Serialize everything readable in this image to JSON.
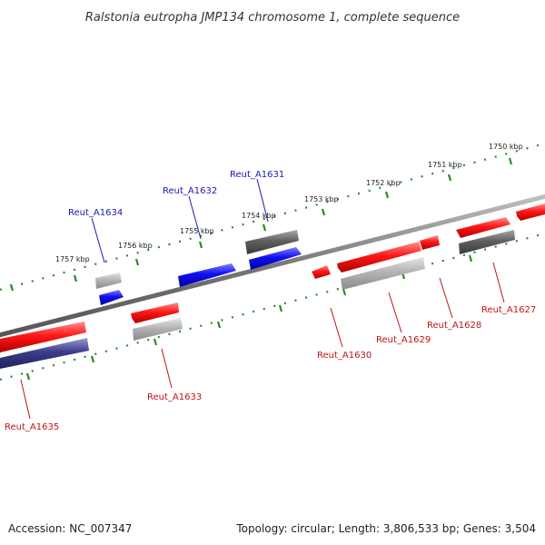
{
  "title": "Ralstonia eutropha JMP134 chromosome 1, complete sequence",
  "accession": "Accession: NC_007347",
  "summary": "Topology: circular; Length: 3,806,533 bp; Genes: 3,504",
  "colors": {
    "forward_gene": "#0a0aee",
    "reverse_gene": "#ee0a0a",
    "forward_label": "#1a1ab0",
    "reverse_label": "#c01414",
    "cds_gray": "#666666",
    "cds_light": "#b8b8b8",
    "cds_purple": "#3a3a8a",
    "backbone": "#777777",
    "tick": "#2a8a2a"
  },
  "ticks": [
    "1750 kbp",
    "1751 kbp",
    "1752 kbp",
    "1753 kbp",
    "1754 kbp",
    "1755 kbp",
    "1756 kbp",
    "1757 kbp"
  ],
  "genes": [
    {
      "id": "Reut_A1627",
      "strand": "reverse"
    },
    {
      "id": "Reut_A1628",
      "strand": "reverse"
    },
    {
      "id": "Reut_A1629",
      "strand": "reverse"
    },
    {
      "id": "Reut_A1630",
      "strand": "reverse"
    },
    {
      "id": "Reut_A1631",
      "strand": "forward"
    },
    {
      "id": "Reut_A1632",
      "strand": "forward"
    },
    {
      "id": "Reut_A1633",
      "strand": "reverse"
    },
    {
      "id": "Reut_A1634",
      "strand": "forward"
    },
    {
      "id": "Reut_A1635",
      "strand": "reverse"
    }
  ]
}
